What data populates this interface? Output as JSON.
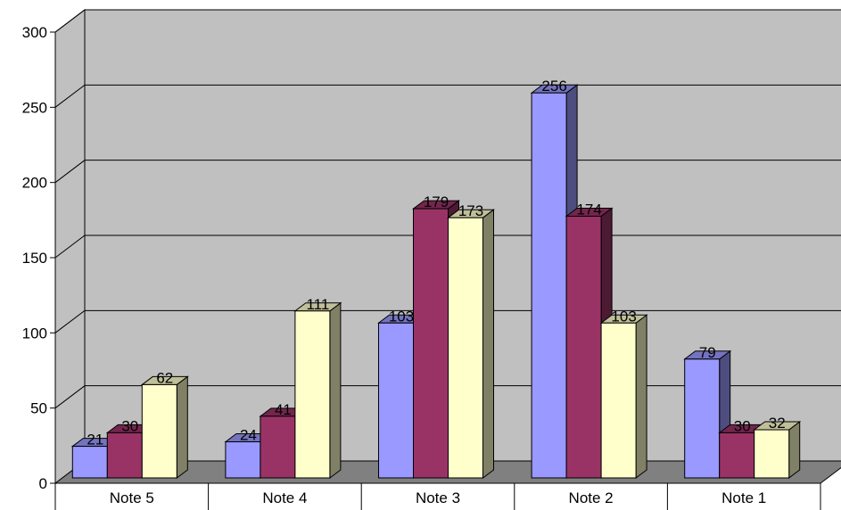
{
  "chart_data": {
    "type": "bar",
    "style": "3d-clustered-column",
    "categories": [
      "Note 5",
      "Note 4",
      "Note 3",
      "Note 2",
      "Note 1"
    ],
    "series": [
      {
        "values": [
          21,
          24,
          103,
          256,
          79
        ],
        "color": "#9999ff"
      },
      {
        "values": [
          30,
          41,
          179,
          174,
          30
        ],
        "color": "#993366"
      },
      {
        "values": [
          62,
          111,
          173,
          103,
          32
        ],
        "color": "#ffffcc"
      }
    ],
    "y_ticks": [
      "0",
      "50",
      "100",
      "150",
      "200",
      "250",
      "300"
    ],
    "ylim": [
      0,
      300
    ],
    "grid": true,
    "legend": "none",
    "title": "",
    "xlabel": "",
    "ylabel": "",
    "colors": {
      "plot_back_wall": "#c0c0c0",
      "plot_side_wall": "#c0c0c0",
      "floor": "#808080",
      "gridline": "#000000"
    }
  }
}
